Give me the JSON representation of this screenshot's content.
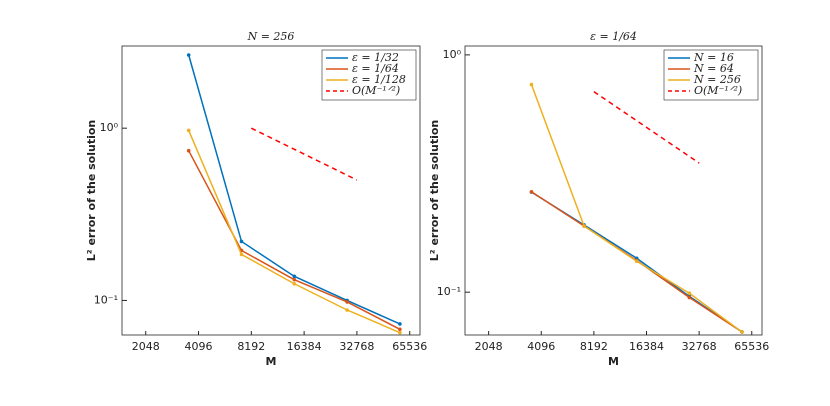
{
  "chart_data": [
    {
      "type": "line",
      "title": "N = 256",
      "x_label": "M",
      "y_label": "L² error of the solution",
      "log_x": true,
      "log_y": true,
      "legend": "top-right",
      "xlim": [
        1500,
        75000
      ],
      "xticks": [
        2048,
        4096,
        8192,
        16384,
        32768,
        65536
      ],
      "ylim": [
        0.063,
        3
      ],
      "yticks": [
        {
          "value": 0.1,
          "label": "10⁻¹"
        },
        {
          "value": 1,
          "label": "10⁰"
        }
      ],
      "series": [
        {
          "name": "ε = 1/32",
          "color": "#0072BD",
          "x": [
            3600,
            7200,
            14400,
            28800,
            57600
          ],
          "values": [
            2.66,
            0.22,
            0.138,
            0.1,
            0.073
          ]
        },
        {
          "name": "ε = 1/64",
          "color": "#D95319",
          "x": [
            3600,
            7200,
            14400,
            28800,
            57600
          ],
          "values": [
            0.74,
            0.195,
            0.132,
            0.098,
            0.068
          ]
        },
        {
          "name": "ε = 1/128",
          "color": "#EDB120",
          "x": [
            3600,
            7200,
            14400,
            28800,
            57600
          ],
          "values": [
            0.97,
            0.185,
            0.125,
            0.088,
            0.065
          ]
        },
        {
          "name": "O(M⁻¹ᐟ²)",
          "color": "#ff0000",
          "dashed": true,
          "x": [
            8192,
            32768
          ],
          "values": [
            1,
            0.5
          ]
        }
      ]
    },
    {
      "type": "line",
      "title": "ε = 1/64",
      "x_label": "M",
      "y_label": "L² error of the solution",
      "log_x": true,
      "log_y": true,
      "legend": "top-right",
      "xlim": [
        1500,
        75000
      ],
      "xticks": [
        2048,
        4096,
        8192,
        16384,
        32768,
        65536
      ],
      "ylim": [
        0.066,
        1.09
      ],
      "yticks": [
        {
          "value": 0.1,
          "label": "10⁻¹"
        },
        {
          "value": 1,
          "label": "10⁰"
        }
      ],
      "series": [
        {
          "name": "N = 16",
          "color": "#0072BD",
          "x": [
            3600,
            7200,
            14400,
            28800,
            57600
          ],
          "values": [
            0.264,
            0.192,
            0.139,
            0.096,
            0.068
          ]
        },
        {
          "name": "N = 64",
          "color": "#D95319",
          "x": [
            3600,
            7200,
            14400,
            28800,
            57600
          ],
          "values": [
            0.265,
            0.19,
            0.136,
            0.095,
            0.068
          ]
        },
        {
          "name": "N = 256",
          "color": "#EDB120",
          "x": [
            3600,
            7200,
            14400,
            28800,
            57600
          ],
          "values": [
            0.75,
            0.19,
            0.135,
            0.099,
            0.068
          ]
        },
        {
          "name": "O(M⁻¹ᐟ²)",
          "color": "#ff0000",
          "dashed": true,
          "x": [
            8192,
            32768
          ],
          "values": [
            0.7,
            0.35
          ]
        }
      ]
    }
  ]
}
